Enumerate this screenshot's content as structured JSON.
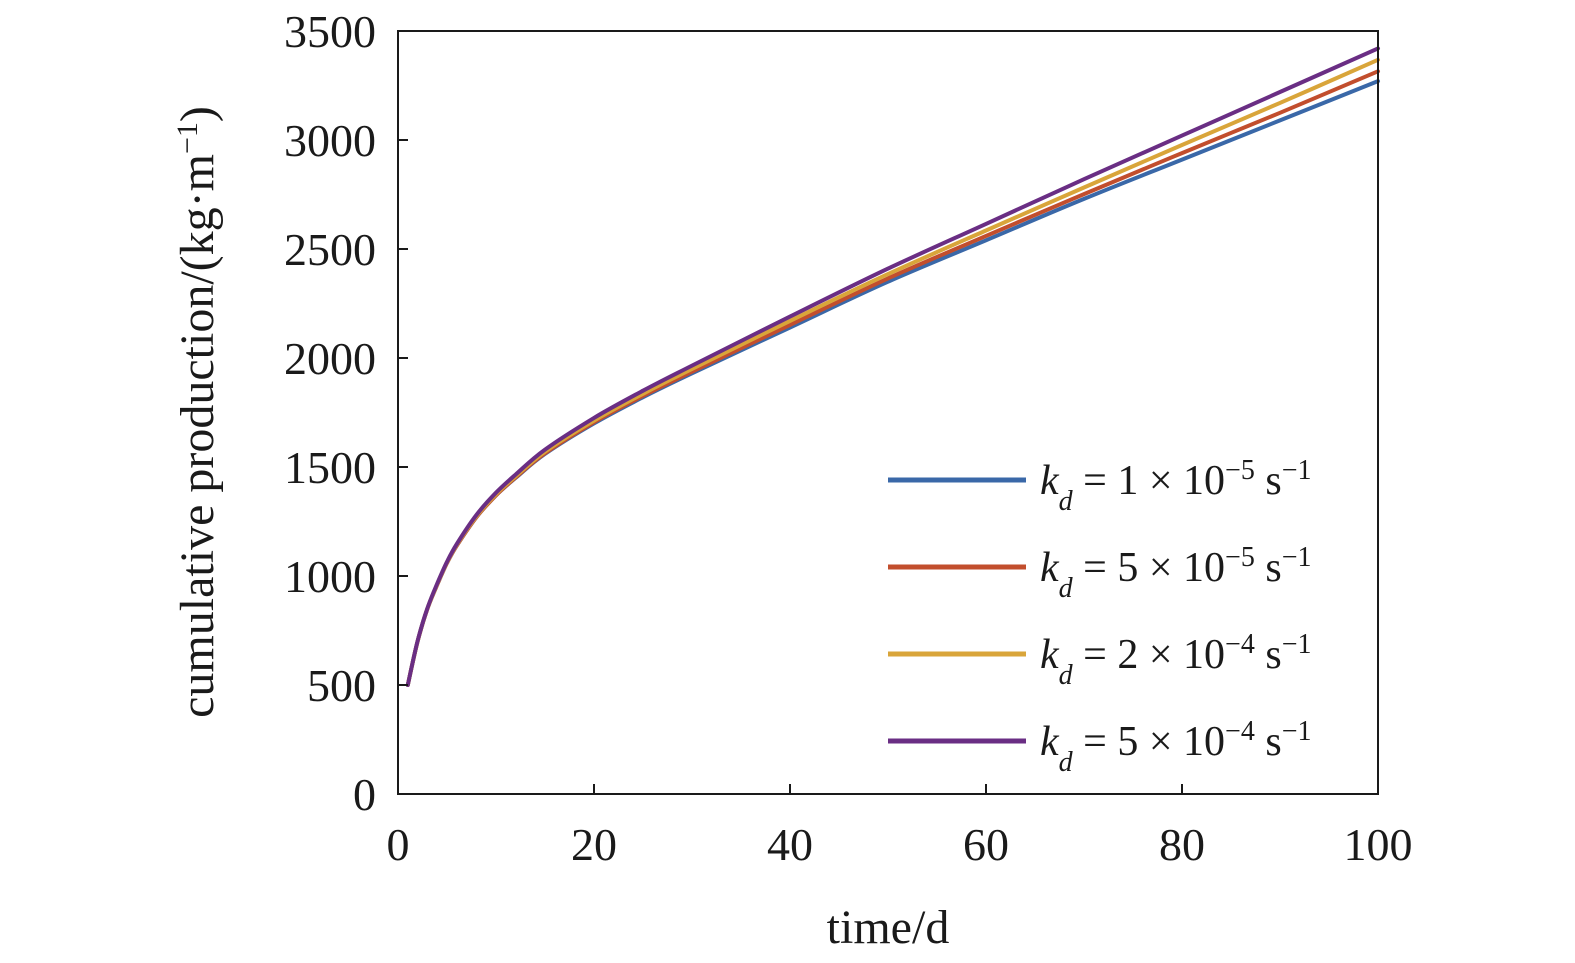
{
  "chart_data": {
    "type": "line",
    "xlabel": "time/d",
    "ylabel": {
      "text": "cumulative production/(kg·m",
      "sup": "−1",
      "close": ")"
    },
    "xlim": [
      0,
      100
    ],
    "ylim": [
      0,
      3500
    ],
    "xticks": [
      0,
      20,
      40,
      60,
      80,
      100
    ],
    "yticks": [
      0,
      500,
      1000,
      1500,
      2000,
      2500,
      3000,
      3500
    ],
    "grid": false,
    "legend_position": "bottom-right",
    "series": [
      {
        "legend": {
          "sym": "k",
          "sub": "d",
          "mid": " = 1 × 10",
          "exp": "−5",
          "unit": " s",
          "unitexp": "−1"
        },
        "color": "#3a68a8",
        "x": [
          1,
          2,
          3,
          4,
          5,
          6,
          8,
          10,
          12,
          15,
          20,
          25,
          30,
          40,
          50,
          60,
          70,
          80,
          90,
          100
        ],
        "y": [
          500,
          700,
          850,
          960,
          1060,
          1140,
          1270,
          1370,
          1450,
          1560,
          1700,
          1820,
          1930,
          2140,
          2350,
          2540,
          2730,
          2910,
          3090,
          3270
        ]
      },
      {
        "legend": {
          "sym": "k",
          "sub": "d",
          "mid": " = 5 × 10",
          "exp": "−5",
          "unit": " s",
          "unitexp": "−1"
        },
        "color": "#c24e2d",
        "x": [
          1,
          2,
          3,
          4,
          5,
          6,
          8,
          10,
          12,
          15,
          20,
          25,
          30,
          40,
          50,
          60,
          70,
          80,
          90,
          100
        ],
        "y": [
          500,
          700,
          850,
          960,
          1060,
          1140,
          1270,
          1370,
          1452,
          1563,
          1705,
          1826,
          1937,
          2152,
          2365,
          2560,
          2752,
          2940,
          3125,
          3315
        ]
      },
      {
        "legend": {
          "sym": "k",
          "sub": "d",
          "mid": " = 2 × 10",
          "exp": "−4",
          "unit": " s",
          "unitexp": "−1"
        },
        "color": "#d9a53a",
        "x": [
          1,
          2,
          3,
          4,
          5,
          6,
          8,
          10,
          12,
          15,
          20,
          25,
          30,
          40,
          50,
          60,
          70,
          80,
          90,
          100
        ],
        "y": [
          500,
          700,
          850,
          962,
          1062,
          1143,
          1274,
          1375,
          1457,
          1570,
          1713,
          1836,
          1950,
          2170,
          2385,
          2585,
          2782,
          2977,
          3170,
          3368
        ]
      },
      {
        "legend": {
          "sym": "k",
          "sub": "d",
          "mid": " = 5 × 10",
          "exp": "−4",
          "unit": " s",
          "unitexp": "−1"
        },
        "color": "#6a2e84",
        "x": [
          1,
          2,
          3,
          4,
          5,
          6,
          8,
          10,
          12,
          15,
          20,
          25,
          30,
          40,
          50,
          60,
          70,
          80,
          90,
          100
        ],
        "y": [
          500,
          702,
          852,
          965,
          1065,
          1147,
          1280,
          1382,
          1465,
          1580,
          1725,
          1850,
          1965,
          2190,
          2410,
          2615,
          2820,
          3020,
          3220,
          3420
        ]
      }
    ]
  }
}
